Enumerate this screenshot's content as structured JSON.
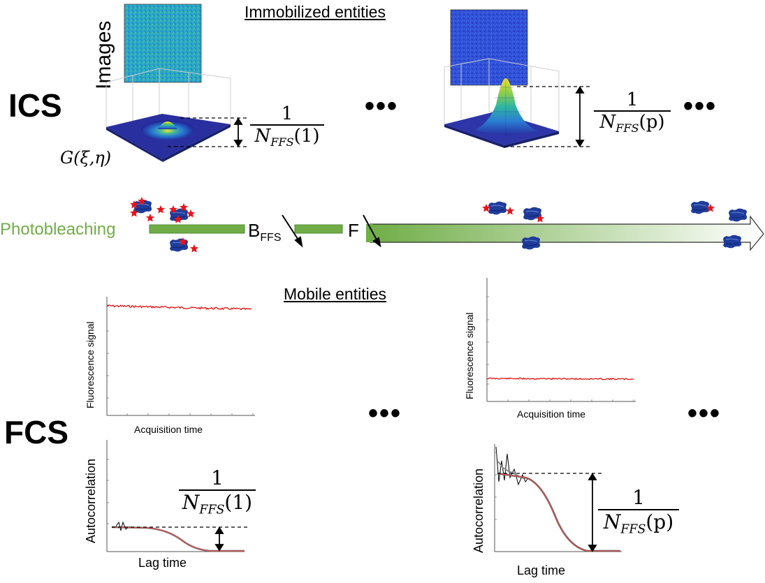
{
  "top_header": "Immobilized entities",
  "mid_header": "Mobile entities",
  "ics_label": "ICS",
  "fcs_label": "FCS",
  "images_label": "Images",
  "gfunc_label": "G(ξ,η)",
  "ellipsis": "•••",
  "frac_num": "1",
  "frac1": {
    "N": "N",
    "sub": "FFS",
    "arg": "(1)"
  },
  "fracp": {
    "N": "N",
    "sub": "FFS",
    "arg": "(p)"
  },
  "photobleaching": "Photobleaching",
  "bffs": {
    "B": "B",
    "sub": "FFS"
  },
  "f_label": "F",
  "fluor_signal": "Fluorescence signal",
  "acq_time": "Acquisition time",
  "autocorr": "Autocorrelation",
  "lag_time": "Lag time",
  "colors": {
    "green": "#70ad47",
    "red": "#e00000",
    "blue": "#1f3c9a",
    "teal": "#2aa5c8"
  }
}
